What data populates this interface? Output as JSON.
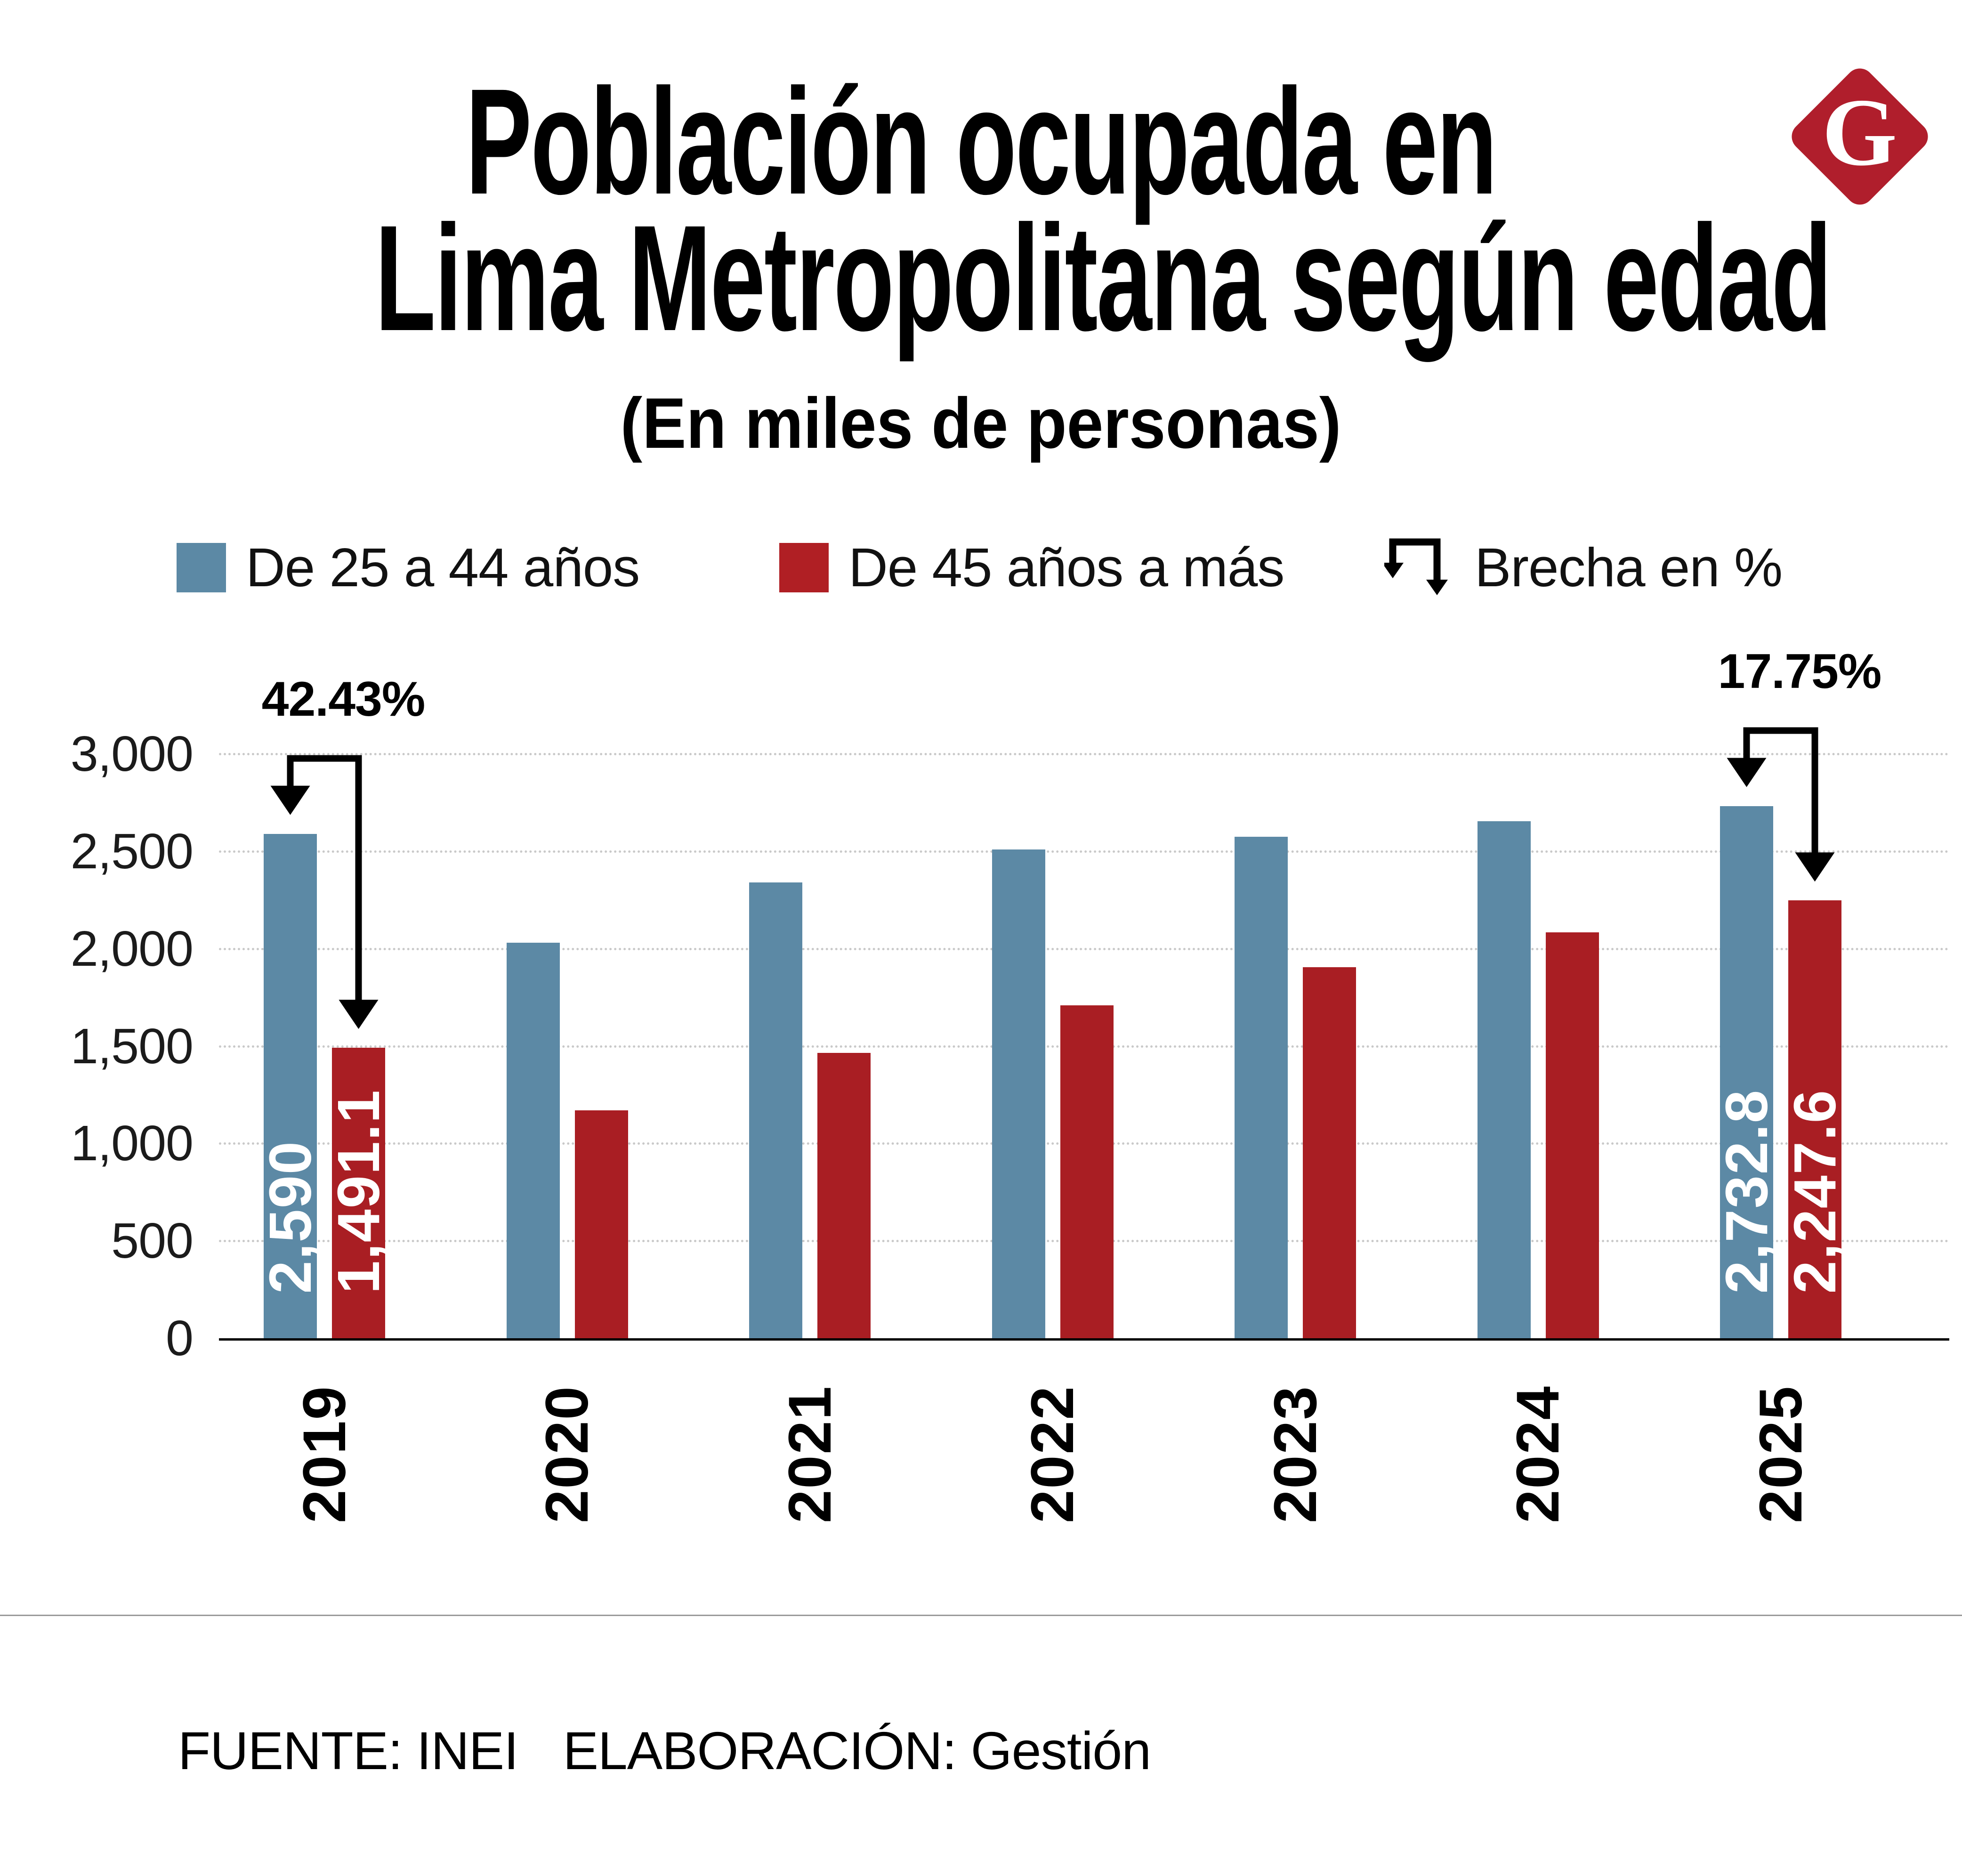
{
  "title": {
    "line1": "Población ocupada en",
    "line2": "Lima Metropolitana según edad"
  },
  "subtitle": "(En miles de personas)",
  "logo": {
    "letter": "G",
    "color": "#b01e2c"
  },
  "legend": [
    {
      "label": "De 25 a 44 años",
      "color": "#5c89a5"
    },
    {
      "label": "De 45 años a más",
      "color": "#b01f24"
    },
    {
      "label": "Brecha en %",
      "icon": "gap-arrows-icon",
      "color": "#000000"
    }
  ],
  "chart_data": {
    "type": "bar",
    "categories": [
      "2019",
      "2020",
      "2021",
      "2022",
      "2023",
      "2024",
      "2025"
    ],
    "series": [
      {
        "name": "De 25 a 44 años",
        "color": "#5c89a5",
        "values": [
          2590,
          2030,
          2340,
          2510,
          2575,
          2655,
          2732.8
        ]
      },
      {
        "name": "De 45 años a más",
        "color": "#a91e23",
        "values": [
          1491.1,
          1170,
          1465,
          1710,
          1905,
          2085,
          2247.6
        ]
      }
    ],
    "bar_labels": {
      "2019": [
        "2,590",
        "1,491.1"
      ],
      "2025": [
        "2,732.8",
        "2,247.6"
      ]
    },
    "annotations": [
      {
        "year": "2019",
        "text": "42.43%"
      },
      {
        "year": "2025",
        "text": "17.75%"
      }
    ],
    "ylim": [
      0,
      3000
    ],
    "yticks": [
      "0",
      "500",
      "1,000",
      "1,500",
      "2,000",
      "2,500",
      "3,000"
    ],
    "ytick_step": 500,
    "grid": "dotted-horizontal",
    "legend_position": "top",
    "annotation_color": "#000000"
  },
  "footer": {
    "source": "FUENTE: INEI",
    "elaboration": "ELABORACIÓN: Gestión"
  }
}
